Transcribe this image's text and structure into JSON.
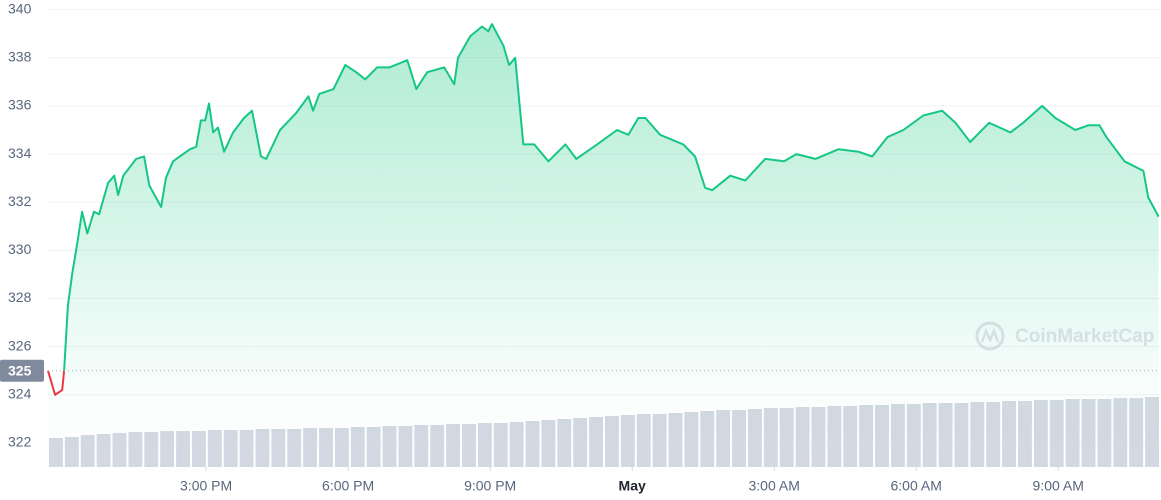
{
  "chart_data": {
    "type": "line",
    "x": [
      11.66,
      11.81,
      11.96,
      12.0,
      12.08,
      12.17,
      12.27,
      12.38,
      12.49,
      12.63,
      12.74,
      12.93,
      13.06,
      13.14,
      13.25,
      13.52,
      13.69,
      13.8,
      14.05,
      14.15,
      14.3,
      14.66,
      14.79,
      14.89,
      14.98,
      15.06,
      15.15,
      15.25,
      15.38,
      15.57,
      15.8,
      15.97,
      16.16,
      16.27,
      16.56,
      16.9,
      17.16,
      17.26,
      17.39,
      17.69,
      17.94,
      18.17,
      18.36,
      18.61,
      18.87,
      19.25,
      19.44,
      19.67,
      20.03,
      20.24,
      20.32,
      20.58,
      20.83,
      20.96,
      21.04,
      21.28,
      21.4,
      21.53,
      21.7,
      21.93,
      22.23,
      22.59,
      22.82,
      23.26,
      23.68,
      23.92,
      24.13,
      24.28,
      24.59,
      25.08,
      25.33,
      25.54,
      25.69,
      26.07,
      26.39,
      26.81,
      27.21,
      27.47,
      27.87,
      28.36,
      28.78,
      29.07,
      29.39,
      29.73,
      30.15,
      30.55,
      30.83,
      31.14,
      31.54,
      31.99,
      32.26,
      32.66,
      32.94,
      33.36,
      33.64,
      33.87,
      34.02,
      34.4,
      34.8,
      34.9,
      35.12
    ],
    "series": [
      {
        "name": "Price",
        "color": "#16c784",
        "below_color": "#ea3943",
        "values": [
          325,
          324.0,
          324.2,
          325.0,
          327.7,
          329,
          330.2,
          331.6,
          330.7,
          331.6,
          331.5,
          332.8,
          333.1,
          332.3,
          333.1,
          333.8,
          333.9,
          332.7,
          331.8,
          333,
          333.7,
          334.2,
          334.3,
          335.4,
          335.4,
          336.1,
          334.9,
          335.1,
          334.1,
          334.9,
          335.5,
          335.8,
          333.9,
          333.8,
          335,
          335.7,
          336.4,
          335.8,
          336.5,
          336.7,
          337.7,
          337.4,
          337.1,
          337.6,
          337.6,
          337.9,
          336.7,
          337.4,
          337.6,
          336.9,
          338,
          338.9,
          339.3,
          339.1,
          339.4,
          338.5,
          337.7,
          338,
          334.4,
          334.4,
          333.7,
          334.4,
          333.8,
          334.4,
          335,
          334.8,
          335.5,
          335.5,
          334.8,
          334.4,
          333.9,
          332.6,
          332.5,
          333.1,
          332.9,
          333.8,
          333.7,
          334,
          333.8,
          334.2,
          334.1,
          333.9,
          334.7,
          335,
          335.6,
          335.8,
          335.3,
          334.5,
          335.3,
          334.9,
          335.3,
          336,
          335.5,
          335,
          335.2,
          335.2,
          334.7,
          333.7,
          333.3,
          332.2,
          331.4
        ]
      }
    ],
    "reference": 325,
    "xlim": [
      11.66,
      35.15
    ],
    "ylim": [
      321,
      340.4
    ],
    "xticks": [
      {
        "value": 15,
        "label": "3:00 PM"
      },
      {
        "value": 18,
        "label": "6:00 PM"
      },
      {
        "value": 21,
        "label": "9:00 PM"
      },
      {
        "value": 24,
        "label": "May"
      },
      {
        "value": 27,
        "label": "3:00 AM"
      },
      {
        "value": 30,
        "label": "6:00 AM"
      },
      {
        "value": 33,
        "label": "9:00 AM"
      }
    ],
    "yticks": [
      322,
      324,
      326,
      328,
      330,
      332,
      334,
      336,
      338,
      340
    ],
    "grid": true,
    "volume": {
      "color": "#d4d8e2",
      "ylim": [
        0,
        100
      ],
      "values": [
        29,
        30,
        32,
        33,
        34,
        35,
        35,
        36,
        36,
        36,
        37,
        37,
        37,
        38,
        38,
        38,
        39,
        39,
        39,
        40,
        40,
        41,
        41,
        42,
        42,
        43,
        43,
        44,
        44,
        45,
        46,
        47,
        48,
        49,
        50,
        51,
        52,
        53,
        53,
        54,
        55,
        56,
        57,
        57,
        58,
        59,
        59,
        60,
        60,
        61,
        61,
        62,
        62,
        63,
        63,
        64,
        64,
        64,
        65,
        65,
        66,
        66,
        67,
        67,
        68,
        68,
        68,
        69,
        69,
        70
      ]
    },
    "watermark": "CoinMarketCap"
  }
}
